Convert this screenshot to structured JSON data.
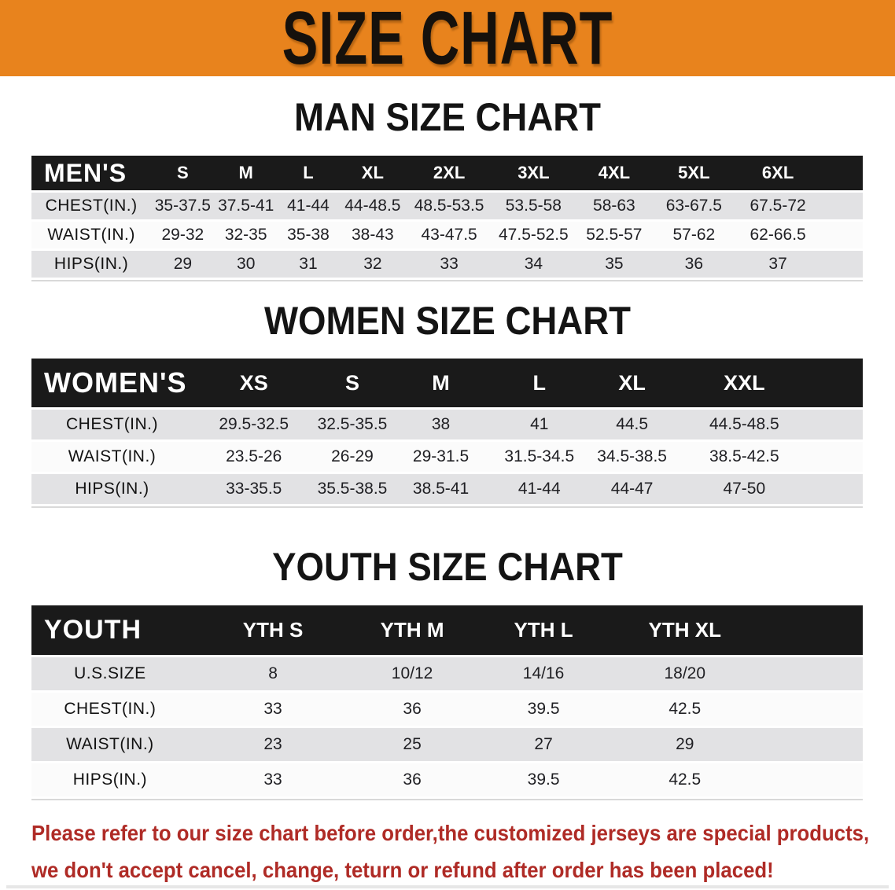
{
  "banner": {
    "title": "SIZE CHART",
    "bg_color": "#E8831D",
    "text_color": "#16110C"
  },
  "sections": [
    {
      "heading": "MAN SIZE CHART",
      "table": {
        "header_label": "MEN'S",
        "columns": [
          "S",
          "M",
          "L",
          "XL",
          "2XL",
          "3XL",
          "4XL",
          "5XL",
          "6XL"
        ],
        "rows": [
          {
            "label": "CHEST(IN.)",
            "values": [
              "35-37.5",
              "37.5-41",
              "41-44",
              "44-48.5",
              "48.5-53.5",
              "53.5-58",
              "58-63",
              "63-67.5",
              "67.5-72"
            ]
          },
          {
            "label": "WAIST(IN.)",
            "values": [
              "29-32",
              "32-35",
              "35-38",
              "38-43",
              "43-47.5",
              "47.5-52.5",
              "52.5-57",
              "57-62",
              "62-66.5"
            ]
          },
          {
            "label": "HIPS(IN.)",
            "values": [
              "29",
              "30",
              "31",
              "32",
              "33",
              "34",
              "35",
              "36",
              "37"
            ]
          }
        ]
      }
    },
    {
      "heading": "WOMEN SIZE CHART",
      "table": {
        "header_label": "WOMEN'S",
        "columns": [
          "XS",
          "S",
          "M",
          "L",
          "XL",
          "XXL"
        ],
        "rows": [
          {
            "label": "CHEST(IN.)",
            "values": [
              "29.5-32.5",
              "32.5-35.5",
              "38",
              "41",
              "44.5",
              "44.5-48.5"
            ]
          },
          {
            "label": "WAIST(IN.)",
            "values": [
              "23.5-26",
              "26-29",
              "29-31.5",
              "31.5-34.5",
              "34.5-38.5",
              "38.5-42.5"
            ]
          },
          {
            "label": "HIPS(IN.)",
            "values": [
              "33-35.5",
              "35.5-38.5",
              "38.5-41",
              "41-44",
              "44-47",
              "47-50"
            ]
          }
        ]
      }
    },
    {
      "heading": "YOUTH SIZE CHART",
      "table": {
        "header_label": "YOUTH",
        "columns": [
          "YTH S",
          "YTH M",
          "YTH L",
          "YTH XL"
        ],
        "rows": [
          {
            "label": "U.S.SIZE",
            "values": [
              "8",
              "10/12",
              "14/16",
              "18/20"
            ]
          },
          {
            "label": "CHEST(IN.)",
            "values": [
              "33",
              "36",
              "39.5",
              "42.5"
            ]
          },
          {
            "label": "WAIST(IN.)",
            "values": [
              "23",
              "25",
              "27",
              "29"
            ]
          },
          {
            "label": "HIPS(IN.)",
            "values": [
              "33",
              "36",
              "39.5",
              "42.5"
            ]
          }
        ]
      }
    }
  ],
  "disclaimer": {
    "line1": "Please refer to our size chart before order,the customized jerseys are special products,",
    "line2": "we don't accept cancel, change, teturn or refund after order has been placed!",
    "color": "#AF2B26"
  }
}
